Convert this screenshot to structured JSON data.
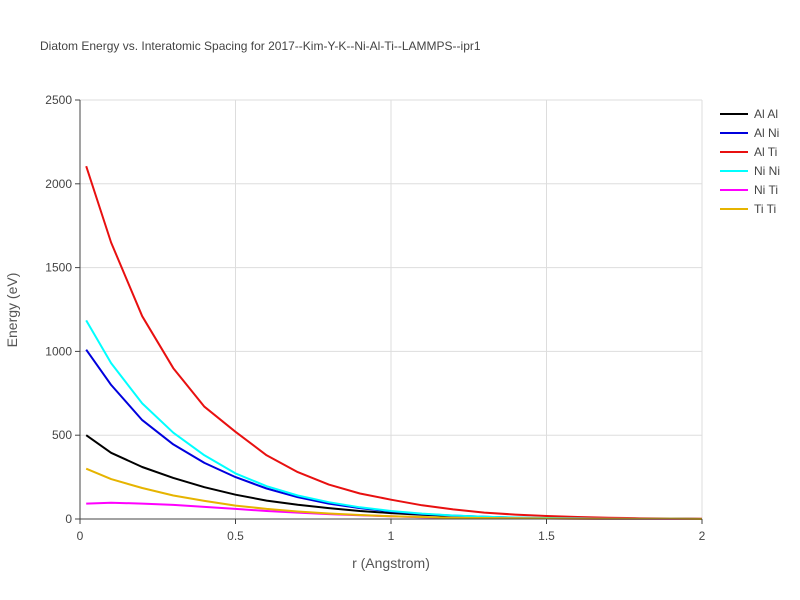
{
  "chart_data": {
    "type": "line",
    "title": "Diatom Energy vs. Interatomic Spacing for 2017--Kim-Y-K--Ni-Al-Ti--LAMMPS--ipr1",
    "xlabel": "r (Angstrom)",
    "ylabel": "Energy (eV)",
    "xlim": [
      0,
      2
    ],
    "ylim": [
      0,
      2500
    ],
    "xticks": [
      0,
      0.5,
      1,
      1.5,
      2
    ],
    "xtick_labels": [
      "0",
      "0.5",
      "1",
      "1.5",
      "2"
    ],
    "yticks": [
      0,
      500,
      1000,
      1500,
      2000,
      2500
    ],
    "ytick_labels": [
      "0",
      "500",
      "1000",
      "1500",
      "2000",
      "2500"
    ],
    "grid": true,
    "legend_position": "top-right",
    "x": [
      0.02,
      0.1,
      0.2,
      0.3,
      0.4,
      0.5,
      0.6,
      0.7,
      0.8,
      0.9,
      1.0,
      1.1,
      1.2,
      1.3,
      1.4,
      1.5,
      1.6,
      1.7,
      1.8,
      1.9,
      2.0
    ],
    "series": [
      {
        "name": "Al Al",
        "color": "#000000",
        "values": [
          500,
          395,
          310,
          245,
          190,
          145,
          110,
          85,
          65,
          48,
          35,
          25,
          18,
          12,
          8,
          5,
          3,
          2,
          1,
          1,
          0
        ]
      },
      {
        "name": "Al Ni",
        "color": "#0000dd",
        "values": [
          1010,
          800,
          590,
          445,
          335,
          250,
          182,
          130,
          92,
          65,
          45,
          30,
          20,
          13,
          8,
          5,
          3,
          2,
          1,
          1,
          0
        ]
      },
      {
        "name": "Al Ti",
        "color": "#e81010",
        "values": [
          2105,
          1650,
          1210,
          900,
          670,
          520,
          380,
          280,
          205,
          152,
          115,
          82,
          57,
          38,
          26,
          18,
          12,
          8,
          5,
          3,
          2
        ]
      },
      {
        "name": "Ni Ni",
        "color": "#00ffff",
        "values": [
          1185,
          930,
          690,
          515,
          380,
          272,
          196,
          140,
          100,
          70,
          48,
          32,
          21,
          14,
          9,
          6,
          4,
          2,
          1,
          1,
          0
        ]
      },
      {
        "name": "Ni Ti",
        "color": "#ff00ff",
        "values": [
          92,
          97,
          92,
          84,
          72,
          60,
          48,
          38,
          29,
          22,
          16,
          11,
          8,
          5,
          4,
          3,
          2,
          1,
          1,
          0,
          0
        ]
      },
      {
        "name": "Ti Ti",
        "color": "#e6b400",
        "values": [
          300,
          238,
          185,
          140,
          108,
          80,
          60,
          45,
          33,
          24,
          17,
          12,
          8,
          6,
          4,
          3,
          2,
          2,
          1,
          1,
          0
        ]
      }
    ]
  }
}
